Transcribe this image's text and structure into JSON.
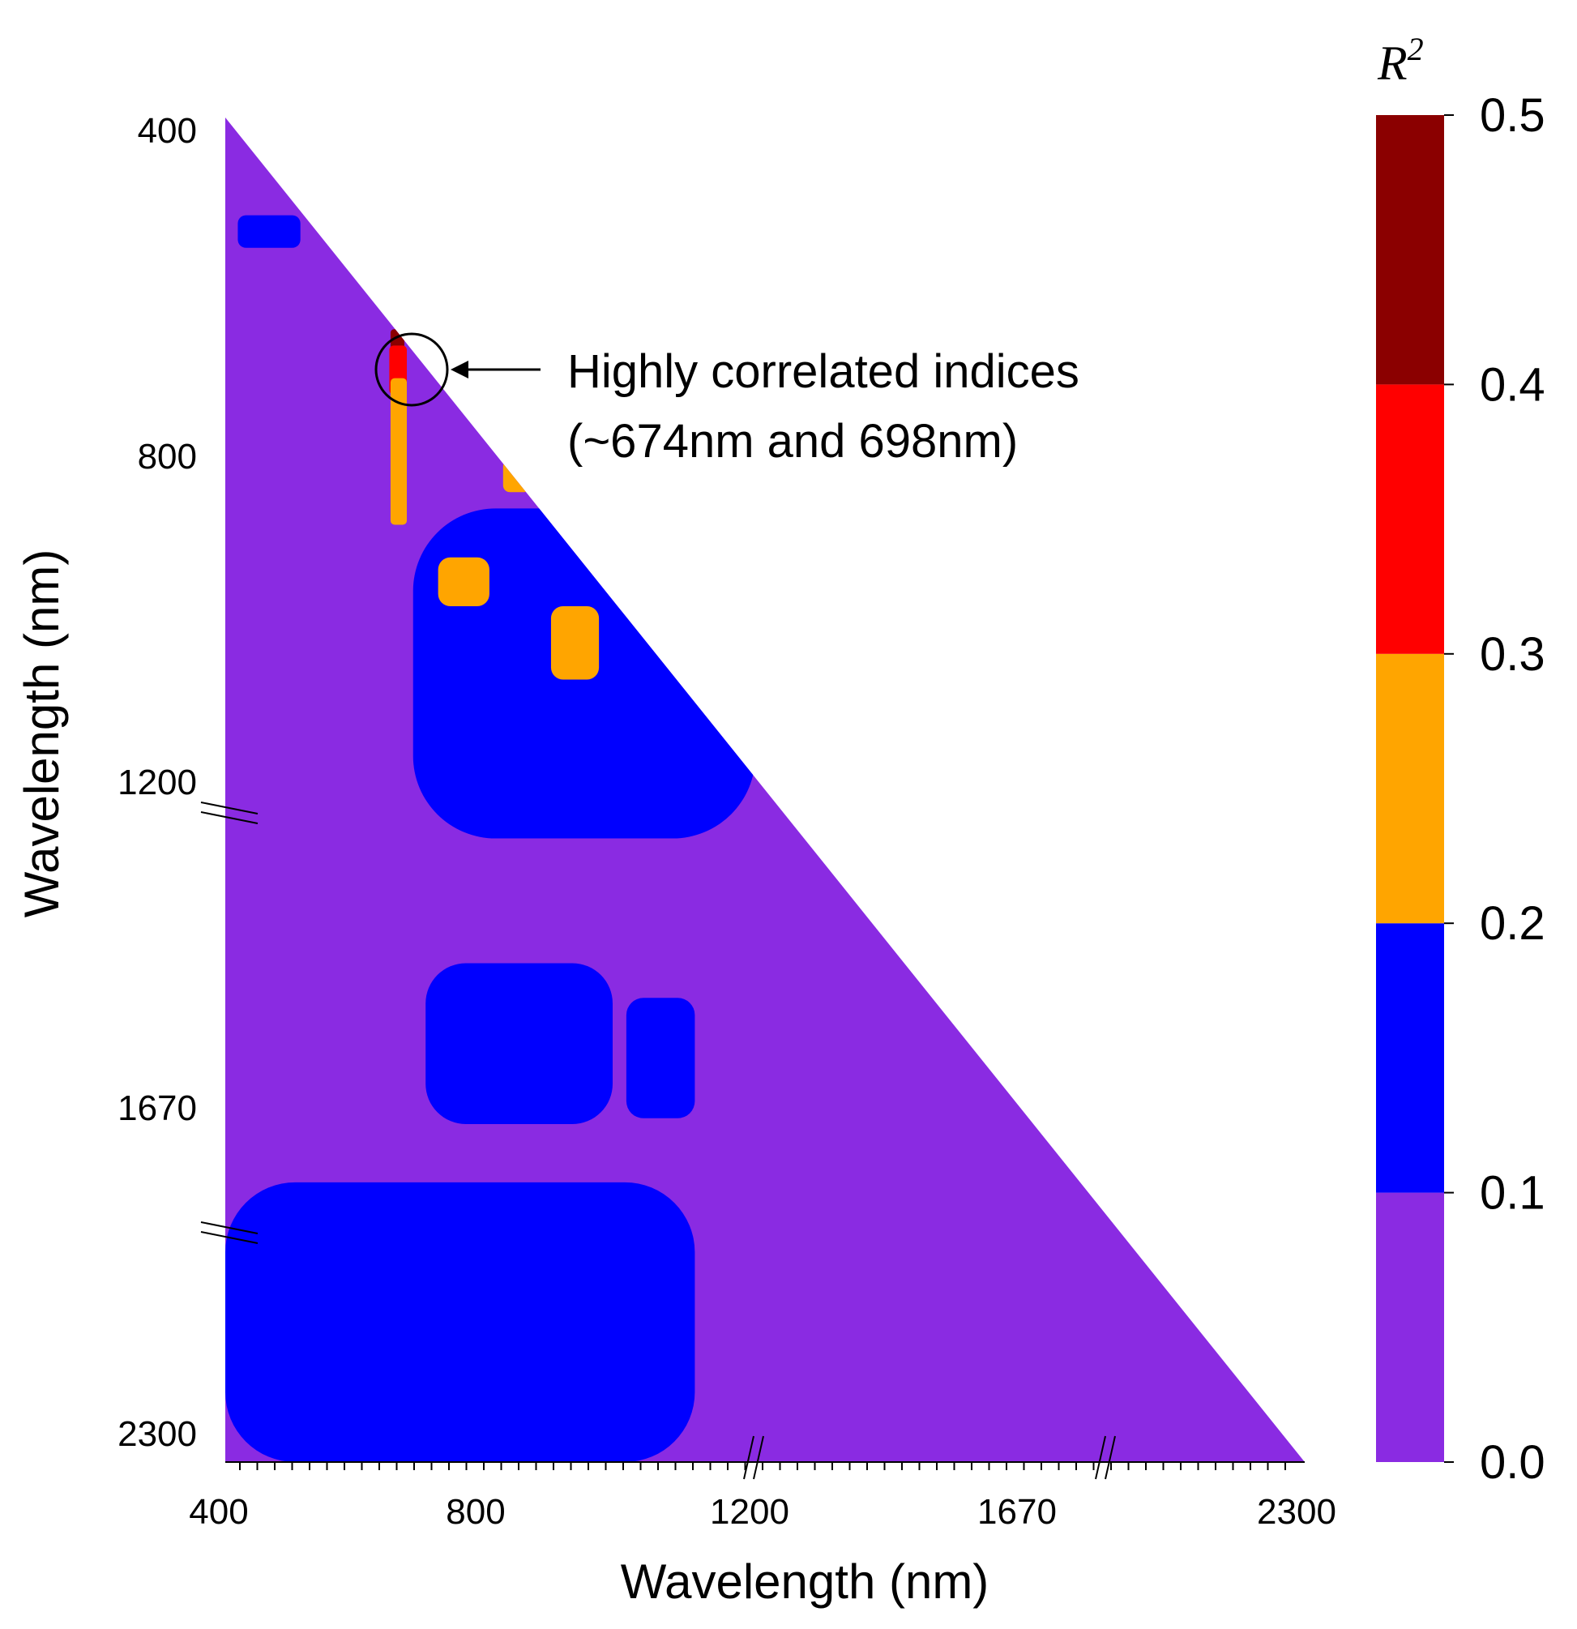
{
  "chart_data": {
    "type": "heatmap",
    "title": "",
    "xlabel": "Wavelength (nm)",
    "ylabel": "Wavelength (nm)",
    "x_ticks": [
      "400",
      "800",
      "1200",
      "1670",
      "2300"
    ],
    "y_ticks": [
      "400",
      "800",
      "1200",
      "1670",
      "2300"
    ],
    "xlim": [
      400,
      2300
    ],
    "ylim": [
      400,
      2300
    ],
    "axis_breaks": "broken axes (//) between 1200–1670 and 1670–2300",
    "mask": "lower triangle",
    "colorbar": {
      "title": "R",
      "title_superscript": "2",
      "ticks": [
        "0.0",
        "0.1",
        "0.2",
        "0.3",
        "0.4",
        "0.5"
      ],
      "bins": [
        {
          "range": [
            0.0,
            0.1
          ],
          "color": "#8A2BE2"
        },
        {
          "range": [
            0.1,
            0.2
          ],
          "color": "#0000FF"
        },
        {
          "range": [
            0.2,
            0.3
          ],
          "color": "#FFA500"
        },
        {
          "range": [
            0.3,
            0.4
          ],
          "color": "#FF0000"
        },
        {
          "range": [
            0.4,
            0.5
          ],
          "color": "#8B0000"
        }
      ]
    },
    "regions": [
      {
        "band": "0.1-0.2",
        "x": [
          420,
          520
        ],
        "y": [
          520,
          560
        ]
      },
      {
        "band": "0.4-0.5",
        "x": [
          664,
          686
        ],
        "y": [
          660,
          690
        ],
        "note": "peak"
      },
      {
        "band": "0.3-0.4",
        "x": [
          662,
          690
        ],
        "y": [
          680,
          740
        ]
      },
      {
        "band": "0.2-0.3",
        "x": [
          664,
          690
        ],
        "y": [
          720,
          900
        ]
      },
      {
        "band": "0.1-0.2",
        "x": [
          700,
          1210
        ],
        "y": [
          880,
          1300
        ]
      },
      {
        "band": "0.2-0.3",
        "x": [
          740,
          820
        ],
        "y": [
          940,
          1000
        ]
      },
      {
        "band": "0.2-0.3",
        "x": [
          840,
          880
        ],
        "y": [
          820,
          860
        ]
      },
      {
        "band": "0.2-0.3",
        "x": [
          910,
          980
        ],
        "y": [
          1000,
          1090
        ]
      },
      {
        "band": "0.1-0.2",
        "x": [
          720,
          1000
        ],
        "y": [
          1480,
          1720
        ]
      },
      {
        "band": "0.1-0.2",
        "x": [
          1020,
          1120
        ],
        "y": [
          1530,
          1710
        ]
      },
      {
        "band": "0.1-0.2",
        "x": [
          400,
          1120
        ],
        "y": [
          1820,
          2300
        ]
      }
    ],
    "annotation": {
      "text_line1": "Highly correlated indices",
      "text_line2": "(~674nm and 698nm)",
      "target_x": 686,
      "target_y": 690
    }
  }
}
